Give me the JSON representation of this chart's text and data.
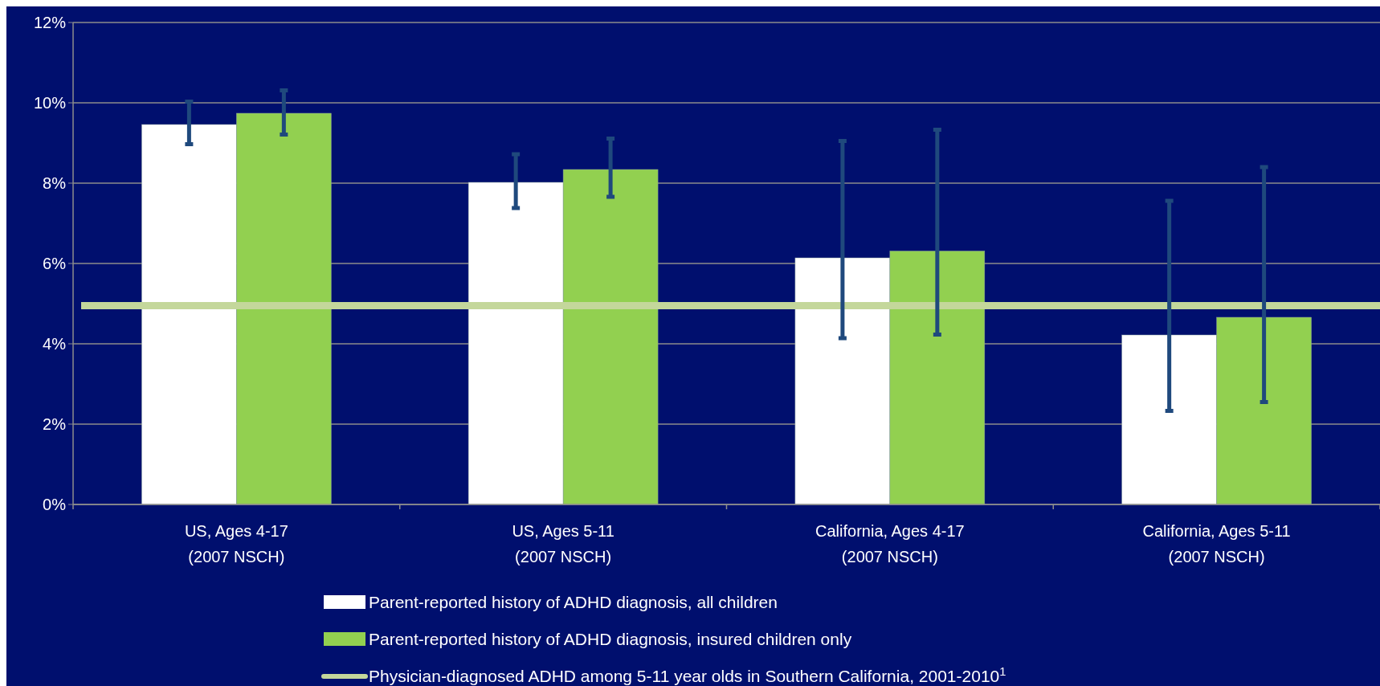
{
  "chart_data": {
    "type": "bar",
    "categories": [
      "US, Ages 4-17\n(2007 NSCH)",
      "US, Ages 5-11\n(2007 NSCH)",
      "California, Ages 4-17\n(2007 NSCH)",
      "California, Ages 5-11\n(2007 NSCH)"
    ],
    "series": [
      {
        "name": "Parent-reported history of ADHD diagnosis, all children",
        "color": "#ffffff",
        "values": [
          9.46,
          8.02,
          6.14,
          4.22
        ],
        "errors": [
          [
            8.97,
            10.03
          ],
          [
            7.38,
            8.72
          ],
          [
            4.14,
            9.05
          ],
          [
            2.33,
            7.56
          ]
        ]
      },
      {
        "name": "Parent-reported history of ADHD diagnosis, insured children only",
        "color": "#92d050",
        "values": [
          9.74,
          8.34,
          6.31,
          4.66
        ],
        "errors": [
          [
            9.21,
            10.31
          ],
          [
            7.66,
            9.11
          ],
          [
            4.23,
            9.33
          ],
          [
            2.55,
            8.4
          ]
        ]
      }
    ],
    "ref_lines": [
      {
        "axis": "y",
        "value": 4.95,
        "label": "Physician-diagnosed ADHD among 5-11 year olds in Southern California, 2001-2010$^{1}$",
        "color": "#c4d79b"
      }
    ],
    "ylim": [
      0,
      12
    ],
    "yticks": [
      {
        "value": 0,
        "label": "0%"
      },
      {
        "value": 2,
        "label": "2%"
      },
      {
        "value": 4,
        "label": "4%"
      },
      {
        "value": 6,
        "label": "6%"
      },
      {
        "value": 8,
        "label": "8%"
      },
      {
        "value": 10,
        "label": "10%"
      },
      {
        "value": 12,
        "label": "12%"
      }
    ],
    "grid": "y",
    "legend": "bottom"
  }
}
